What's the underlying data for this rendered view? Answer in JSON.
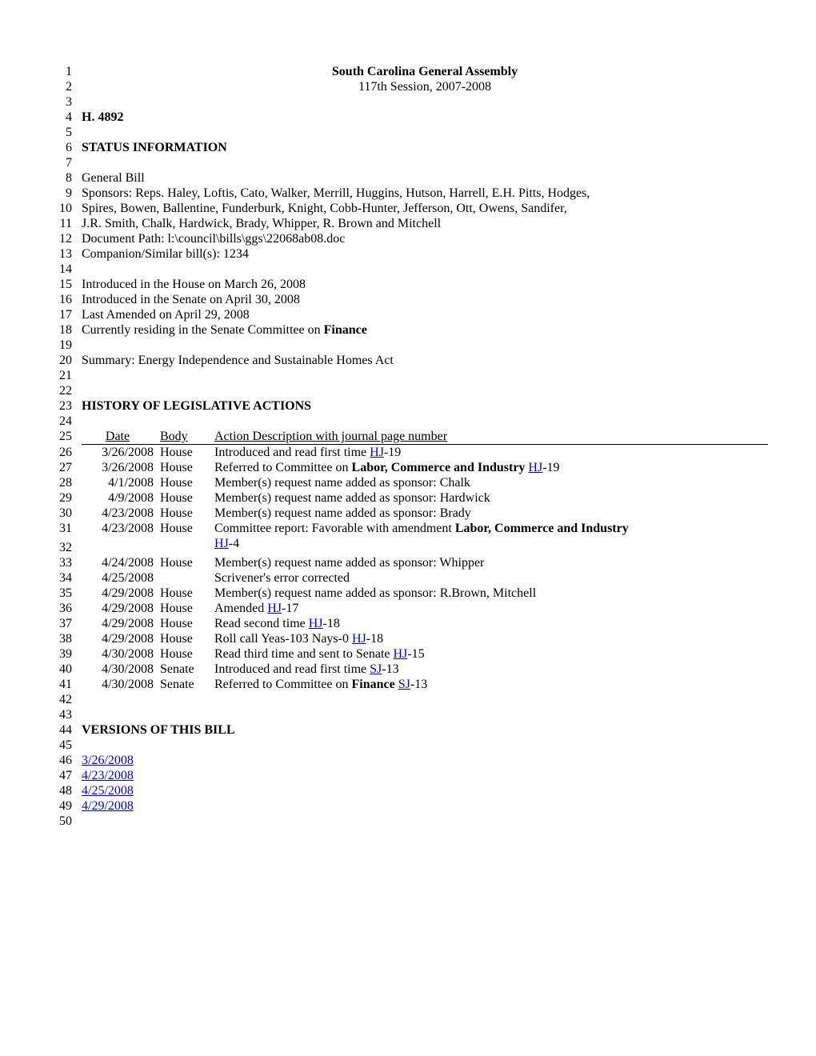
{
  "header": {
    "title": "South Carolina General Assembly",
    "session": "117th Session, 2007-2008"
  },
  "bill_number": "H. 4892",
  "status_header": "STATUS INFORMATION",
  "status": {
    "type": "General Bill",
    "sponsors_lines": [
      "Sponsors: Reps. Haley, Loftis, Cato, Walker, Merrill, Huggins, Hutson, Harrell, E.H. Pitts, Hodges,",
      "Spires, Bowen, Ballentine, Funderburk, Knight, Cobb-Hunter, Jefferson, Ott, Owens, Sandifer,",
      "J.R. Smith, Chalk, Hardwick, Brady, Whipper, R. Brown and Mitchell"
    ],
    "doc_path": "Document Path: l:\\council\\bills\\ggs\\22068ab08.doc",
    "companion": "Companion/Similar bill(s): 1234",
    "intro_house": "Introduced in the House on March 26, 2008",
    "intro_senate": "Introduced in the Senate on April 30, 2008",
    "last_amended": "Last Amended on April 29, 2008",
    "residing_prefix": "Currently residing in the Senate Committee on ",
    "residing_committee": "Finance",
    "summary": "Summary: Energy Independence and Sustainable Homes Act"
  },
  "history_header": "HISTORY OF LEGISLATIVE ACTIONS",
  "history_table": {
    "headers": {
      "date": "Date",
      "body": "Body",
      "action": "Action Description with journal page number"
    },
    "rows": [
      {
        "date": "3/26/2008",
        "body": "House",
        "action_pre": "Introduced and read first time ",
        "link": "HJ",
        "action_post": "-19"
      },
      {
        "date": "3/26/2008",
        "body": "House",
        "action_pre": "Referred to Committee on ",
        "bold": "Labor, Commerce and Industry",
        "action_mid": " ",
        "link": "HJ",
        "action_post": "-19"
      },
      {
        "date": "4/1/2008",
        "body": "House",
        "action_pre": "Member(s) request name added as sponsor: Chalk"
      },
      {
        "date": "4/9/2008",
        "body": "House",
        "action_pre": "Member(s) request name added as sponsor: Hardwick"
      },
      {
        "date": "4/23/2008",
        "body": "House",
        "action_pre": "Member(s) request name added as sponsor: Brady"
      },
      {
        "date": "4/23/2008",
        "body": "House",
        "action_pre": "Committee report: Favorable with amendment ",
        "bold": "Labor, Commerce and Industry",
        "continuation": true
      },
      {
        "date": "",
        "body": "",
        "link": "HJ",
        "action_post": "-4",
        "indent_action": true
      },
      {
        "date": "4/24/2008",
        "body": "House",
        "action_pre": "Member(s) request name added as sponsor: Whipper"
      },
      {
        "date": "4/25/2008",
        "body": "",
        "action_pre": "Scrivener's error corrected"
      },
      {
        "date": "4/29/2008",
        "body": "House",
        "action_pre": "Member(s) request name added as sponsor: R.Brown, Mitchell"
      },
      {
        "date": "4/29/2008",
        "body": "House",
        "action_pre": "Amended ",
        "link": "HJ",
        "action_post": "-17"
      },
      {
        "date": "4/29/2008",
        "body": "House",
        "action_pre": "Read second time ",
        "link": "HJ",
        "action_post": "-18"
      },
      {
        "date": "4/29/2008",
        "body": "House",
        "action_pre": "Roll call Yeas-103  Nays-0 ",
        "link": "HJ",
        "action_post": "-18"
      },
      {
        "date": "4/30/2008",
        "body": "House",
        "action_pre": "Read third time and sent to Senate ",
        "link": "HJ",
        "action_post": "-15"
      },
      {
        "date": "4/30/2008",
        "body": "Senate",
        "action_pre": "Introduced and read first time ",
        "link": "SJ",
        "action_post": "-13"
      },
      {
        "date": "4/30/2008",
        "body": "Senate",
        "action_pre": "Referred to Committee on ",
        "bold": "Finance",
        "action_mid": " ",
        "link": "SJ",
        "action_post": "-13"
      }
    ]
  },
  "versions_header": "VERSIONS OF THIS BILL",
  "versions": [
    "3/26/2008",
    "4/23/2008",
    "4/25/2008",
    "4/29/2008"
  ],
  "colors": {
    "link": "#0000ee",
    "text": "#000000",
    "bg": "#ffffff"
  }
}
